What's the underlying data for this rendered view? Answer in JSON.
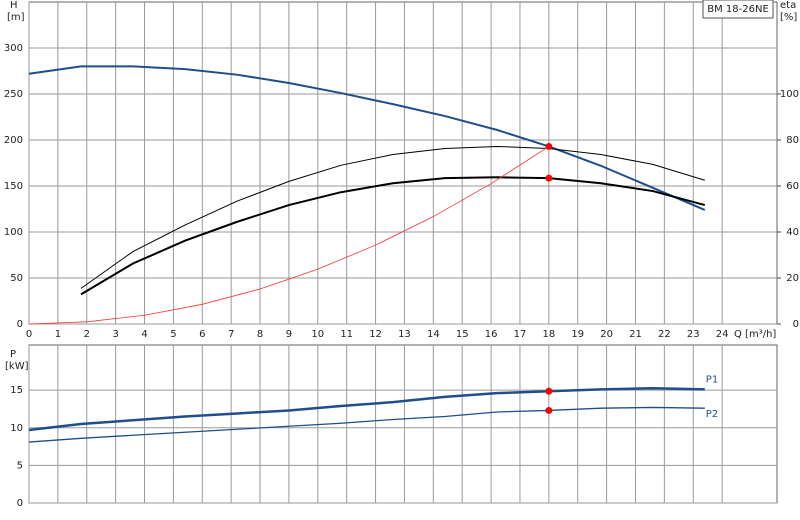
{
  "chart_data": [
    {
      "type": "line",
      "title": "BM 18-26NE",
      "y_label": "H",
      "y_unit": "[m]",
      "y2_label": "eta",
      "y2_unit": "[%]",
      "x_label": "Q [m³/h]",
      "xlim": [
        0,
        25.9
      ],
      "xticks": [
        0,
        1,
        2,
        3,
        4,
        5,
        6,
        7,
        8,
        9,
        10,
        11,
        12,
        13,
        14,
        15,
        16,
        17,
        18,
        19,
        20,
        21,
        22,
        23,
        24
      ],
      "ylim": [
        0,
        350
      ],
      "yticks": [
        0,
        50,
        100,
        150,
        200,
        250,
        300
      ],
      "y2lim": [
        0,
        140
      ],
      "y2ticks": [
        0,
        20,
        40,
        60,
        80,
        100
      ],
      "grid": true,
      "series": [
        {
          "color": "#1f4e8c",
          "line_width": 2,
          "x": [
            0,
            1.8,
            3.6,
            5.4,
            7.2,
            9,
            10.8,
            12.6,
            14.4,
            16.2,
            18,
            19.8,
            21.6,
            23.4
          ],
          "values": [
            272,
            280,
            280,
            277,
            271,
            262,
            251,
            239,
            226,
            211,
            193,
            172,
            148,
            124
          ]
        },
        {
          "color": "#000000",
          "line_width": 1,
          "axis": "y2",
          "x": [
            1.8,
            3.6,
            5.4,
            7.2,
            9,
            10.8,
            12.6,
            14.4,
            16.2,
            18,
            19.8,
            21.6,
            23.4
          ],
          "values": [
            15.5,
            31.5,
            43,
            53.4,
            62,
            69,
            73.7,
            76.3,
            77.2,
            76.3,
            73.7,
            69.4,
            62.5
          ]
        },
        {
          "color": "#000000",
          "line_width": 2,
          "axis": "y2",
          "x": [
            1.8,
            3.6,
            5.4,
            7.2,
            9,
            10.8,
            12.6,
            14.4,
            16.2,
            18,
            19.8,
            21.6,
            23.4
          ],
          "values": [
            12.9,
            26.3,
            36.2,
            44.4,
            51.7,
            57.3,
            61.2,
            63.4,
            63.8,
            63.4,
            61.2,
            57.8,
            51.7
          ]
        },
        {
          "color": "#ff3333",
          "line_width": 0.8,
          "x": [
            0,
            2,
            4,
            6,
            8,
            10,
            12,
            14,
            16,
            18
          ],
          "values": [
            0,
            2.4,
            9.5,
            21.4,
            38.1,
            59.6,
            85.8,
            116.8,
            152.5,
            193
          ]
        },
        {
          "color": "#ff0000",
          "style": "points",
          "x": [
            18
          ],
          "values": [
            193
          ]
        },
        {
          "color": "#ff0000",
          "style": "points",
          "axis": "y2",
          "x": [
            18
          ],
          "values": [
            63.4
          ]
        }
      ]
    },
    {
      "type": "line",
      "y_label": "P",
      "y_unit": "[kW]",
      "xlim": [
        0,
        25.9
      ],
      "xticks": [
        0,
        1,
        2,
        3,
        4,
        5,
        6,
        7,
        8,
        9,
        10,
        11,
        12,
        13,
        14,
        15,
        16,
        17,
        18,
        19,
        20,
        21,
        22,
        23,
        24
      ],
      "xtick_labels": false,
      "ylim": [
        0,
        21
      ],
      "yticks": [
        0,
        5,
        10,
        15
      ],
      "grid": true,
      "series": [
        {
          "name": "P1",
          "color": "#1f4e8c",
          "line_width": 2.5,
          "x": [
            0,
            1.8,
            3.6,
            5.4,
            7.2,
            9,
            10.8,
            12.6,
            14.4,
            16.2,
            18,
            19.8,
            21.6,
            23.4
          ],
          "values": [
            9.7,
            10.5,
            11,
            11.5,
            11.9,
            12.3,
            12.9,
            13.4,
            14.1,
            14.6,
            14.85,
            15.1,
            15.25,
            15.1
          ]
        },
        {
          "name": "P2",
          "color": "#1f4e8c",
          "line_width": 1.3,
          "x": [
            0,
            1.8,
            3.6,
            5.4,
            7.2,
            9,
            10.8,
            12.6,
            14.4,
            16.2,
            18,
            19.8,
            21.6,
            23.4
          ],
          "values": [
            8.1,
            8.6,
            9,
            9.4,
            9.8,
            10.2,
            10.6,
            11.1,
            11.5,
            12.1,
            12.3,
            12.6,
            12.7,
            12.6
          ]
        },
        {
          "color": "#ff0000",
          "style": "points",
          "x": [
            18
          ],
          "values": [
            14.85
          ]
        },
        {
          "color": "#ff0000",
          "style": "points",
          "x": [
            18
          ],
          "values": [
            12.3
          ]
        }
      ]
    }
  ]
}
